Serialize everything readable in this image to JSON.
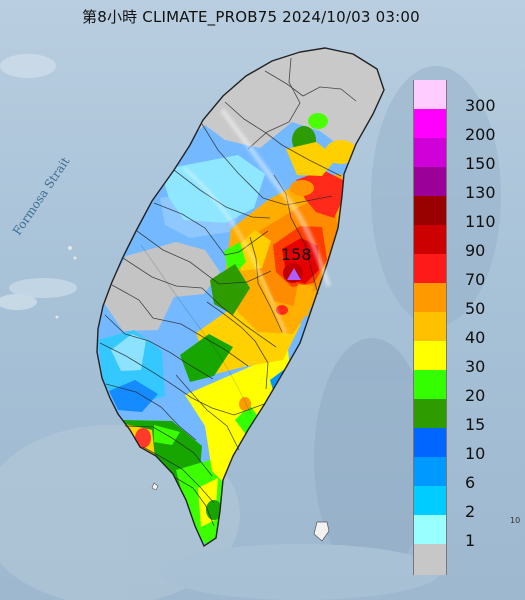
{
  "header": {
    "title": "第8小時  CLIMATE_PROB75 2024/10/03 03:00"
  },
  "map": {
    "sea_label": "Formosa Strait",
    "peak_value": "158",
    "corner_label": "10"
  },
  "legend": {
    "items": [
      {
        "label": "300",
        "color": "#ffccff"
      },
      {
        "label": "200",
        "color": "#ff00ff"
      },
      {
        "label": "150",
        "color": "#d000d8"
      },
      {
        "label": "130",
        "color": "#9b0099"
      },
      {
        "label": "110",
        "color": "#990000"
      },
      {
        "label": "90",
        "color": "#cc0000"
      },
      {
        "label": "70",
        "color": "#ff1a1a"
      },
      {
        "label": "50",
        "color": "#ff9900"
      },
      {
        "label": "40",
        "color": "#ffc000"
      },
      {
        "label": "30",
        "color": "#ffff00"
      },
      {
        "label": "20",
        "color": "#33ff00"
      },
      {
        "label": "15",
        "color": "#2e9b00"
      },
      {
        "label": "10",
        "color": "#0066ff"
      },
      {
        "label": "6",
        "color": "#0099ff"
      },
      {
        "label": "2",
        "color": "#00ccff"
      },
      {
        "label": "1",
        "color": "#99ffff"
      },
      {
        "label": "",
        "color": "#c7c7c7"
      }
    ]
  }
}
